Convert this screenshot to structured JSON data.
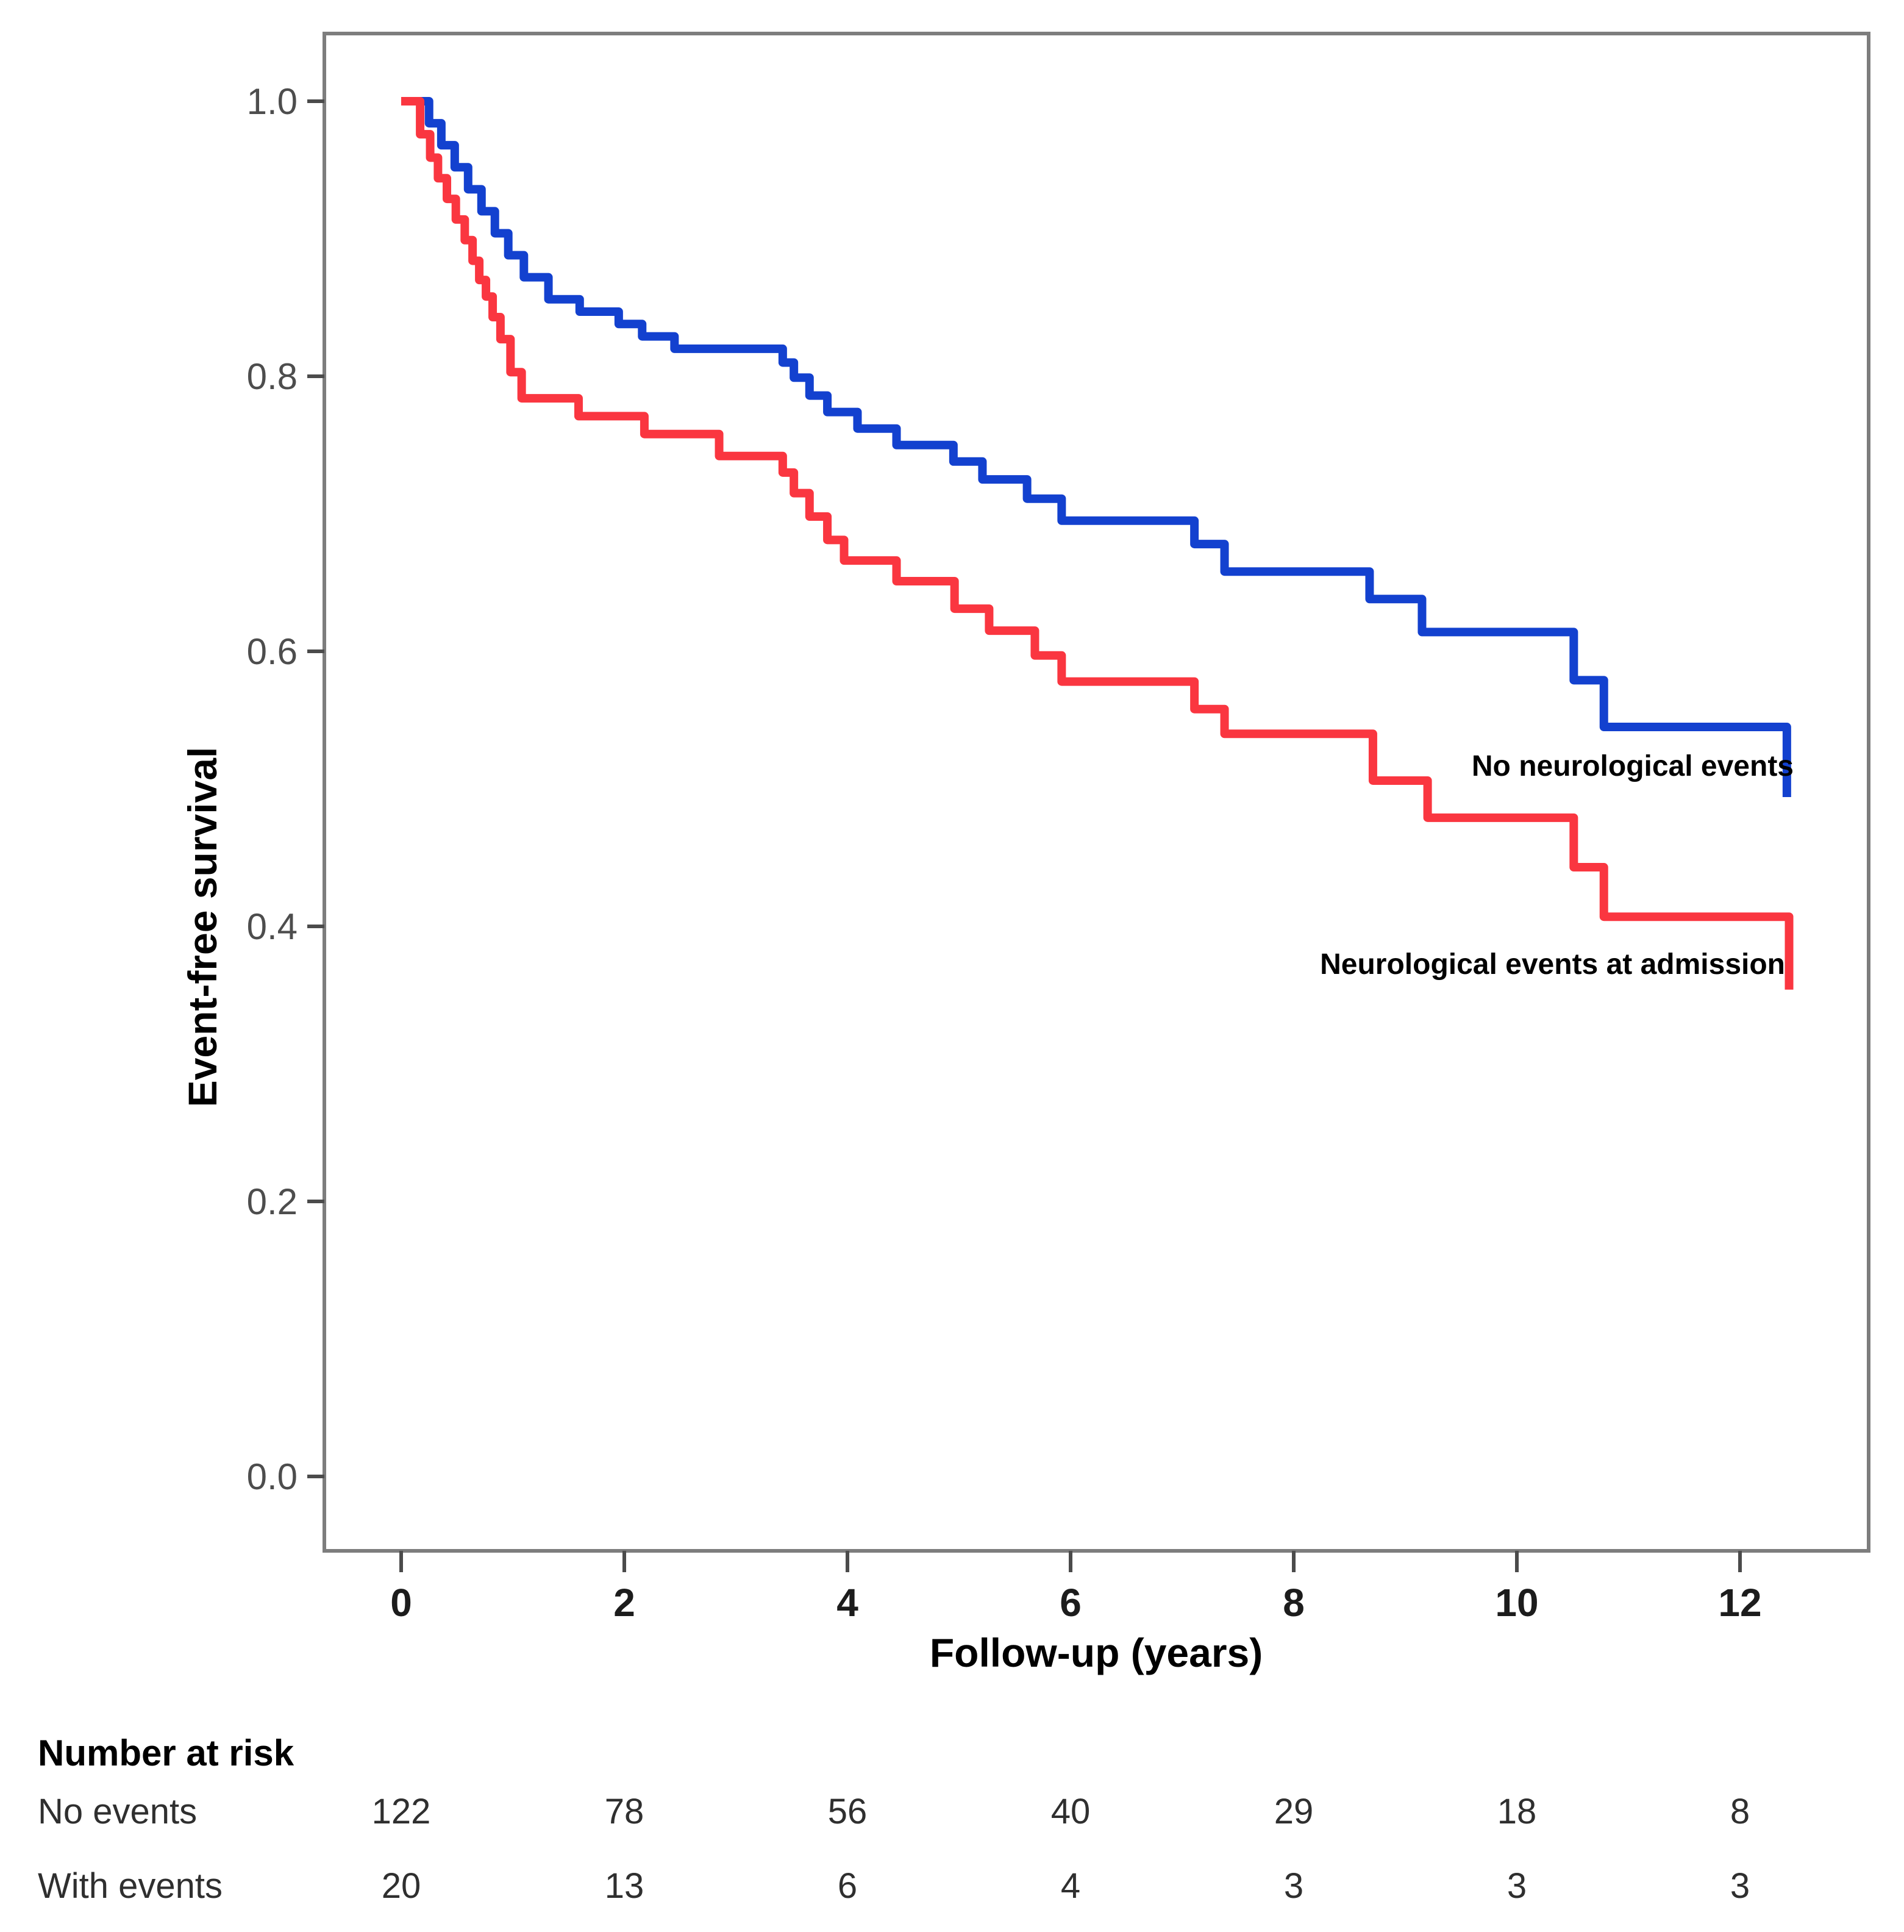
{
  "chart_data": {
    "type": "line",
    "subtype": "kaplan-meier-step",
    "title": "",
    "xlabel": "Follow-up (years)",
    "ylabel": "Event-free survival",
    "x_ticks": [
      0,
      2,
      4,
      6,
      8,
      10,
      12
    ],
    "y_ticks": [
      0.0,
      0.2,
      0.4,
      0.6,
      0.8,
      1.0
    ],
    "xlim": [
      -0.7,
      13.2
    ],
    "ylim": [
      -0.05,
      1.05
    ],
    "grid": false,
    "legend_position": "inline-labels-right",
    "series": [
      {
        "name": "No neurological events",
        "color": "#1341cf",
        "steps": [
          [
            0.1,
            1.0
          ],
          [
            0.25,
            0.984
          ],
          [
            0.36,
            0.968
          ],
          [
            0.48,
            0.952
          ],
          [
            0.6,
            0.936
          ],
          [
            0.72,
            0.92
          ],
          [
            0.84,
            0.904
          ],
          [
            0.96,
            0.888
          ],
          [
            1.1,
            0.872
          ],
          [
            1.32,
            0.856
          ],
          [
            1.6,
            0.847
          ],
          [
            1.95,
            0.838
          ],
          [
            2.16,
            0.829
          ],
          [
            2.45,
            0.82
          ],
          [
            3.42,
            0.81
          ],
          [
            3.52,
            0.799
          ],
          [
            3.66,
            0.786
          ],
          [
            3.82,
            0.774
          ],
          [
            4.09,
            0.762
          ],
          [
            4.44,
            0.75
          ],
          [
            4.95,
            0.738
          ],
          [
            5.21,
            0.725
          ],
          [
            5.61,
            0.711
          ],
          [
            5.92,
            0.695
          ],
          [
            7.11,
            0.678
          ],
          [
            7.38,
            0.658
          ],
          [
            8.68,
            0.638
          ],
          [
            9.15,
            0.614
          ],
          [
            10.51,
            0.579
          ],
          [
            10.78,
            0.545
          ],
          [
            12.42,
            0.494
          ]
        ]
      },
      {
        "name": "Neurological events at admission",
        "color": "#fa3640",
        "steps": [
          [
            0.0,
            1.0
          ],
          [
            0.17,
            0.976
          ],
          [
            0.26,
            0.959
          ],
          [
            0.33,
            0.944
          ],
          [
            0.41,
            0.929
          ],
          [
            0.49,
            0.914
          ],
          [
            0.57,
            0.899
          ],
          [
            0.64,
            0.884
          ],
          [
            0.7,
            0.87
          ],
          [
            0.76,
            0.858
          ],
          [
            0.82,
            0.843
          ],
          [
            0.89,
            0.827
          ],
          [
            0.98,
            0.803
          ],
          [
            1.08,
            0.784
          ],
          [
            1.59,
            0.771
          ],
          [
            2.18,
            0.758
          ],
          [
            2.85,
            0.742
          ],
          [
            3.42,
            0.73
          ],
          [
            3.52,
            0.715
          ],
          [
            3.66,
            0.698
          ],
          [
            3.82,
            0.681
          ],
          [
            3.97,
            0.666
          ],
          [
            4.44,
            0.651
          ],
          [
            4.96,
            0.631
          ],
          [
            5.27,
            0.615
          ],
          [
            5.68,
            0.597
          ],
          [
            5.92,
            0.578
          ],
          [
            7.11,
            0.558
          ],
          [
            7.38,
            0.54
          ],
          [
            8.71,
            0.506
          ],
          [
            9.2,
            0.479
          ],
          [
            10.51,
            0.443
          ],
          [
            10.78,
            0.407
          ],
          [
            12.44,
            0.354
          ]
        ]
      }
    ],
    "inline_labels": [
      {
        "text": "No neurological events",
        "series": "No neurological events"
      },
      {
        "text": "Neurological events at admission",
        "series": "Neurological events at admission"
      }
    ],
    "risk_table": {
      "header": "Number at risk",
      "times": [
        0,
        2,
        4,
        6,
        8,
        10,
        12
      ],
      "rows": [
        {
          "label": "No events",
          "counts": [
            122,
            78,
            56,
            40,
            29,
            18,
            8
          ]
        },
        {
          "label": "With events",
          "counts": [
            20,
            13,
            6,
            4,
            3,
            3,
            3
          ]
        }
      ]
    }
  },
  "colors": {
    "background": "#ffffff",
    "plot_border": "#7d7d7d",
    "blue_series": "#1341cf",
    "red_series": "#fa3640",
    "tick_text": "#4d4d4d",
    "axis_text": "#000000"
  }
}
